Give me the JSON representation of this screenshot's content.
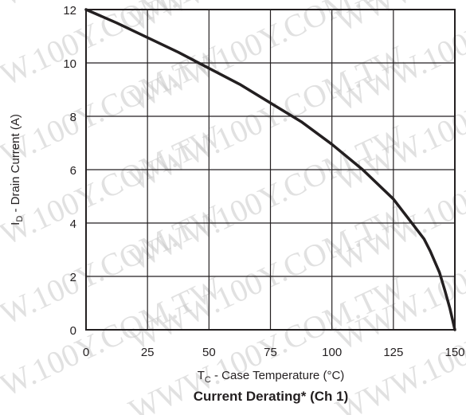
{
  "colors": {
    "line": "#231f20",
    "grid": "#231f20",
    "watermark": "#c9c9c9"
  },
  "watermark_text": "WWW.100Y.COM.TW",
  "chart_data": {
    "type": "line",
    "title": "Current Derating* (Ch 1)",
    "xlabel": {
      "main": "T",
      "sub": "C",
      "rest": " - Case Temperature (°C)"
    },
    "ylabel": {
      "main": "I",
      "sub": "D",
      "rest": " - Drain Current (A)"
    },
    "xlim": [
      0,
      150
    ],
    "ylim": [
      0,
      12
    ],
    "xticks": [
      0,
      25,
      50,
      75,
      100,
      125,
      150
    ],
    "yticks": [
      0,
      2,
      4,
      6,
      8,
      10,
      12
    ],
    "grid": true,
    "series": [
      {
        "x": [
          0,
          12.5,
          25,
          37.5,
          50,
          62.5,
          75,
          87.5,
          100,
          112.5,
          125,
          137.5,
          140,
          143.75,
          146,
          148,
          149,
          150
        ],
        "y": [
          12,
          11.5,
          10.95,
          10.4,
          9.8,
          9.2,
          8.5,
          7.8,
          6.95,
          6.0,
          4.9,
          3.4,
          2.95,
          2.15,
          1.45,
          0.8,
          0.4,
          0
        ]
      }
    ]
  }
}
